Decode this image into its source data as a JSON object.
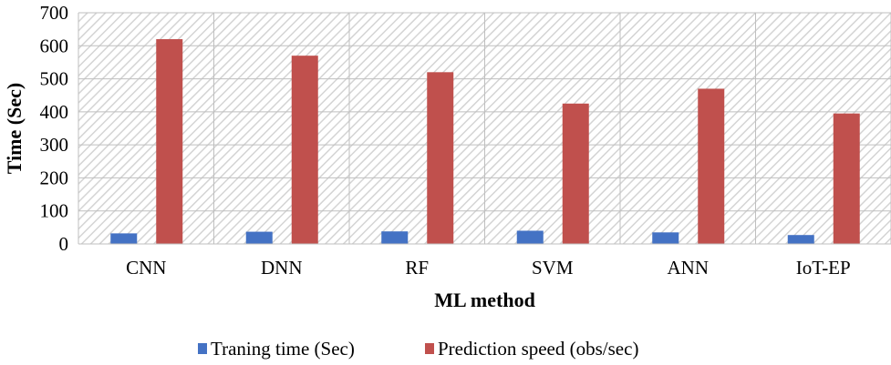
{
  "chart_data": {
    "type": "bar",
    "title": "",
    "xlabel": "ML method",
    "ylabel": "Time (Sec)",
    "ylim": [
      0,
      700
    ],
    "yticks": [
      "0",
      "100",
      "200",
      "300",
      "400",
      "500",
      "600",
      "700"
    ],
    "ytick_values": [
      0,
      100,
      200,
      300,
      400,
      500,
      600,
      700
    ],
    "categories": [
      "CNN",
      "DNN",
      "RF",
      "SVM",
      "ANN",
      "IoT-EP"
    ],
    "series": [
      {
        "name": "Traning time (Sec)",
        "color": "#4472c4",
        "values": [
          32,
          37,
          38,
          40,
          35,
          27
        ]
      },
      {
        "name": "Prediction speed (obs/sec)",
        "color": "#c0504d",
        "values": [
          620,
          570,
          520,
          425,
          470,
          395
        ]
      }
    ],
    "legend_position": "bottom",
    "grid": true
  }
}
